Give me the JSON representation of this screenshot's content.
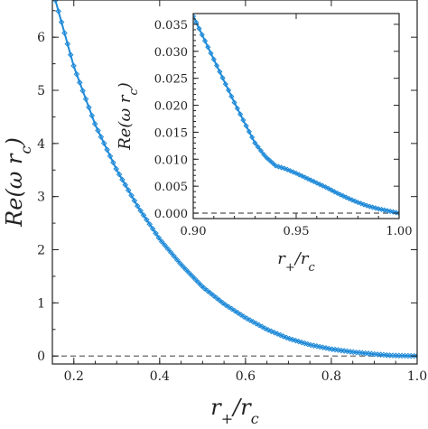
{
  "chart_data": [
    {
      "type": "line",
      "xlabel": "r+/rc",
      "ylabel": "Re(ω rc)",
      "xlim": [
        0.15,
        1.0
      ],
      "ylim": [
        -0.15,
        6.7
      ],
      "xticks": [
        "0.2",
        "0.4",
        "0.6",
        "0.8",
        "1.0"
      ],
      "yticks": [
        "0",
        "1",
        "2",
        "3",
        "4",
        "5",
        "6"
      ],
      "grid": false,
      "reference_line": {
        "y": 0,
        "style": "dashed"
      },
      "series": [
        {
          "color": "#1f8ad8",
          "style": "solid line with open diamond markers",
          "x": [
            0.15,
            0.2,
            0.25,
            0.3,
            0.35,
            0.4,
            0.45,
            0.5,
            0.55,
            0.6,
            0.65,
            0.7,
            0.75,
            0.8,
            0.85,
            0.9,
            0.94,
            0.97,
            1.0
          ],
          "y": [
            6.9,
            5.45,
            4.35,
            3.5,
            2.8,
            2.2,
            1.72,
            1.3,
            0.98,
            0.72,
            0.5,
            0.33,
            0.21,
            0.13,
            0.075,
            0.035,
            0.01,
            0.004,
            0.0
          ]
        }
      ]
    },
    {
      "type": "line",
      "xlabel": "r+/rc",
      "ylabel": "Re(ω rc)",
      "xlim": [
        0.9,
        1.0
      ],
      "ylim": [
        -0.001,
        0.037
      ],
      "xticks": [
        "0.90",
        "0.95",
        "1.00"
      ],
      "yticks": [
        "0.000",
        "0.005",
        "0.010",
        "0.015",
        "0.020",
        "0.025",
        "0.030",
        "0.035"
      ],
      "grid": false,
      "reference_line": {
        "y": 0,
        "style": "dashed"
      },
      "series": [
        {
          "color": "#1f8ad8",
          "style": "solid line with open diamond markers",
          "x": [
            0.9,
            0.905,
            0.91,
            0.915,
            0.92,
            0.925,
            0.93,
            0.935,
            0.94,
            0.945,
            0.95,
            0.955,
            0.96,
            0.965,
            0.97,
            0.975,
            0.98,
            0.985,
            0.99,
            0.995,
            1.0
          ],
          "y": [
            0.0365,
            0.0325,
            0.0285,
            0.0245,
            0.0205,
            0.0167,
            0.013,
            0.0105,
            0.0088,
            0.0082,
            0.0074,
            0.0065,
            0.0056,
            0.0047,
            0.0037,
            0.0028,
            0.002,
            0.0013,
            0.0008,
            0.0004,
            0.0
          ]
        }
      ]
    }
  ]
}
